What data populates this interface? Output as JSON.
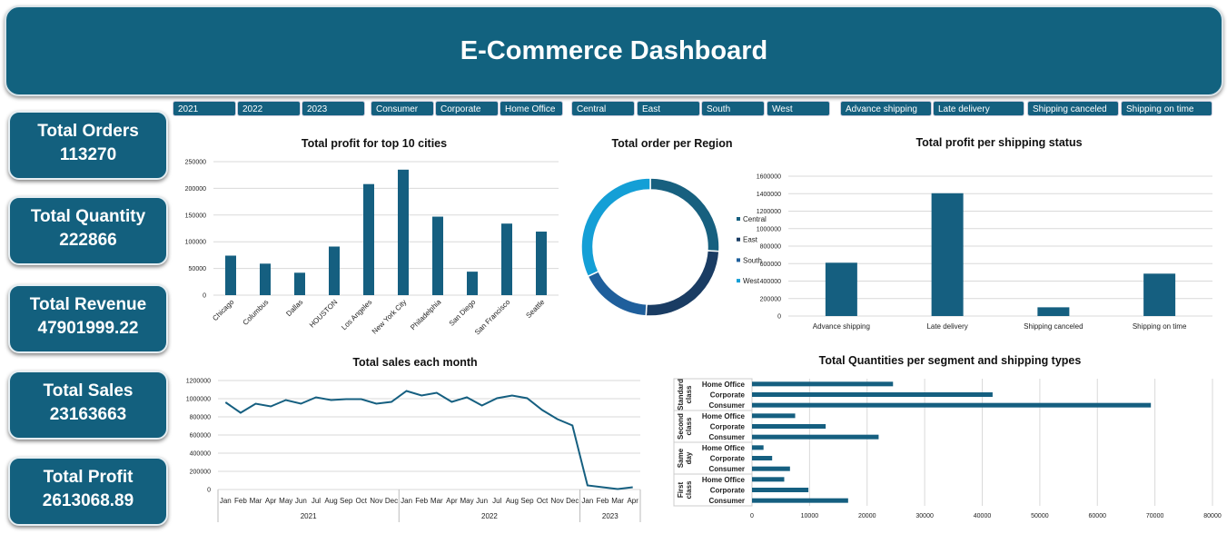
{
  "header": {
    "title": "E-Commerce Dashboard"
  },
  "kpis": [
    {
      "label": "Total Orders",
      "value": "113270"
    },
    {
      "label": "Total Quantity",
      "value": "222866"
    },
    {
      "label": "Total Revenue",
      "value": "47901999.22"
    },
    {
      "label": "Total Sales",
      "value": "23163663"
    },
    {
      "label": "Total Profit",
      "value": "2613068.89"
    }
  ],
  "filters": {
    "years": [
      "2021",
      "2022",
      "2023"
    ],
    "segments": [
      "Consumer",
      "Corporate",
      "Home Office"
    ],
    "regions": [
      "Central",
      "East",
      "South",
      "West"
    ],
    "shipping": [
      "Advance shipping",
      "Late delivery",
      "Shipping canceled",
      "Shipping on time"
    ]
  },
  "colors": {
    "primary": "#155f80",
    "header": "#12627f",
    "central": "#17607f",
    "east": "#1a3c63",
    "south": "#1f5f9c",
    "west": "#149fd6"
  },
  "chart_data": [
    {
      "id": "cities",
      "type": "bar",
      "title": "Total profit for top 10 cities",
      "categories": [
        "Chicago",
        "Columbus",
        "Dallas",
        "HOUSTON",
        "Los Angeles",
        "New York City",
        "Philadelphia",
        "San Diego",
        "San Francisco",
        "Seattle"
      ],
      "values": [
        74000,
        59000,
        42000,
        91000,
        208000,
        235000,
        147000,
        44000,
        134000,
        119000
      ],
      "ylim": [
        0,
        250000
      ],
      "yticks": [
        "0",
        "50000",
        "100000",
        "150000",
        "200000",
        "250000"
      ],
      "grid": true
    },
    {
      "id": "region",
      "type": "pie",
      "title": "Total order per Region",
      "categories": [
        "Central",
        "East",
        "South",
        "West"
      ],
      "values": [
        26,
        25,
        17,
        32
      ],
      "legend": "right"
    },
    {
      "id": "shipping",
      "type": "bar",
      "title": "Total profit per shipping status",
      "categories": [
        "Advance shipping",
        "Late delivery",
        "Shipping canceled",
        "Shipping on time"
      ],
      "values": [
        610000,
        1405000,
        100000,
        485000
      ],
      "ylim": [
        0,
        1600000
      ],
      "yticks": [
        "0",
        "200000",
        "400000",
        "600000",
        "800000",
        "1000000",
        "1200000",
        "1400000",
        "1600000"
      ],
      "grid": true
    },
    {
      "id": "monthly",
      "type": "line",
      "title": "Total sales each month",
      "months": [
        "Jan",
        "Feb",
        "Mar",
        "Apr",
        "May",
        "Jun",
        "Jul",
        "Aug",
        "Sep",
        "Oct",
        "Nov",
        "Dec",
        "Jan",
        "Feb",
        "Mar",
        "Apr",
        "May",
        "Jun",
        "Jul",
        "Aug",
        "Sep",
        "Oct",
        "Nov",
        "Dec",
        "Jan",
        "Feb",
        "Mar",
        "Apr"
      ],
      "years": [
        {
          "label": "2021",
          "count": 12
        },
        {
          "label": "2022",
          "count": 12
        },
        {
          "label": "2023",
          "count": 4
        }
      ],
      "values": [
        960000,
        845000,
        945000,
        915000,
        985000,
        945000,
        1015000,
        985000,
        995000,
        995000,
        945000,
        965000,
        1085000,
        1035000,
        1065000,
        965000,
        1015000,
        925000,
        1005000,
        1035000,
        1005000,
        875000,
        775000,
        705000,
        45000,
        25000,
        5000,
        25000
      ],
      "ylim": [
        0,
        1200000
      ],
      "yticks": [
        "0",
        "200000",
        "400000",
        "600000",
        "800000",
        "1000000",
        "1200000"
      ],
      "grid": true
    },
    {
      "id": "quantities",
      "type": "bar",
      "orientation": "horizontal",
      "title": "Total Quantities per segment and shipping types",
      "groups": [
        {
          "label": "Standard class",
          "items": [
            {
              "segment": "Home Office",
              "value": 24500
            },
            {
              "segment": "Corporate",
              "value": 41800
            },
            {
              "segment": "Consumer",
              "value": 69300
            }
          ]
        },
        {
          "label": "Second class",
          "items": [
            {
              "segment": "Home Office",
              "value": 7500
            },
            {
              "segment": "Corporate",
              "value": 12800
            },
            {
              "segment": "Consumer",
              "value": 22000
            }
          ]
        },
        {
          "label": "Same day",
          "items": [
            {
              "segment": "Home Office",
              "value": 2000
            },
            {
              "segment": "Corporate",
              "value": 3500
            },
            {
              "segment": "Consumer",
              "value": 6600
            }
          ]
        },
        {
          "label": "First class",
          "items": [
            {
              "segment": "Home Office",
              "value": 5600
            },
            {
              "segment": "Corporate",
              "value": 9800
            },
            {
              "segment": "Consumer",
              "value": 16700
            }
          ]
        }
      ],
      "xlim": [
        0,
        80000
      ],
      "xticks": [
        "0",
        "10000",
        "20000",
        "30000",
        "40000",
        "50000",
        "60000",
        "70000",
        "80000"
      ],
      "grid": true
    }
  ]
}
